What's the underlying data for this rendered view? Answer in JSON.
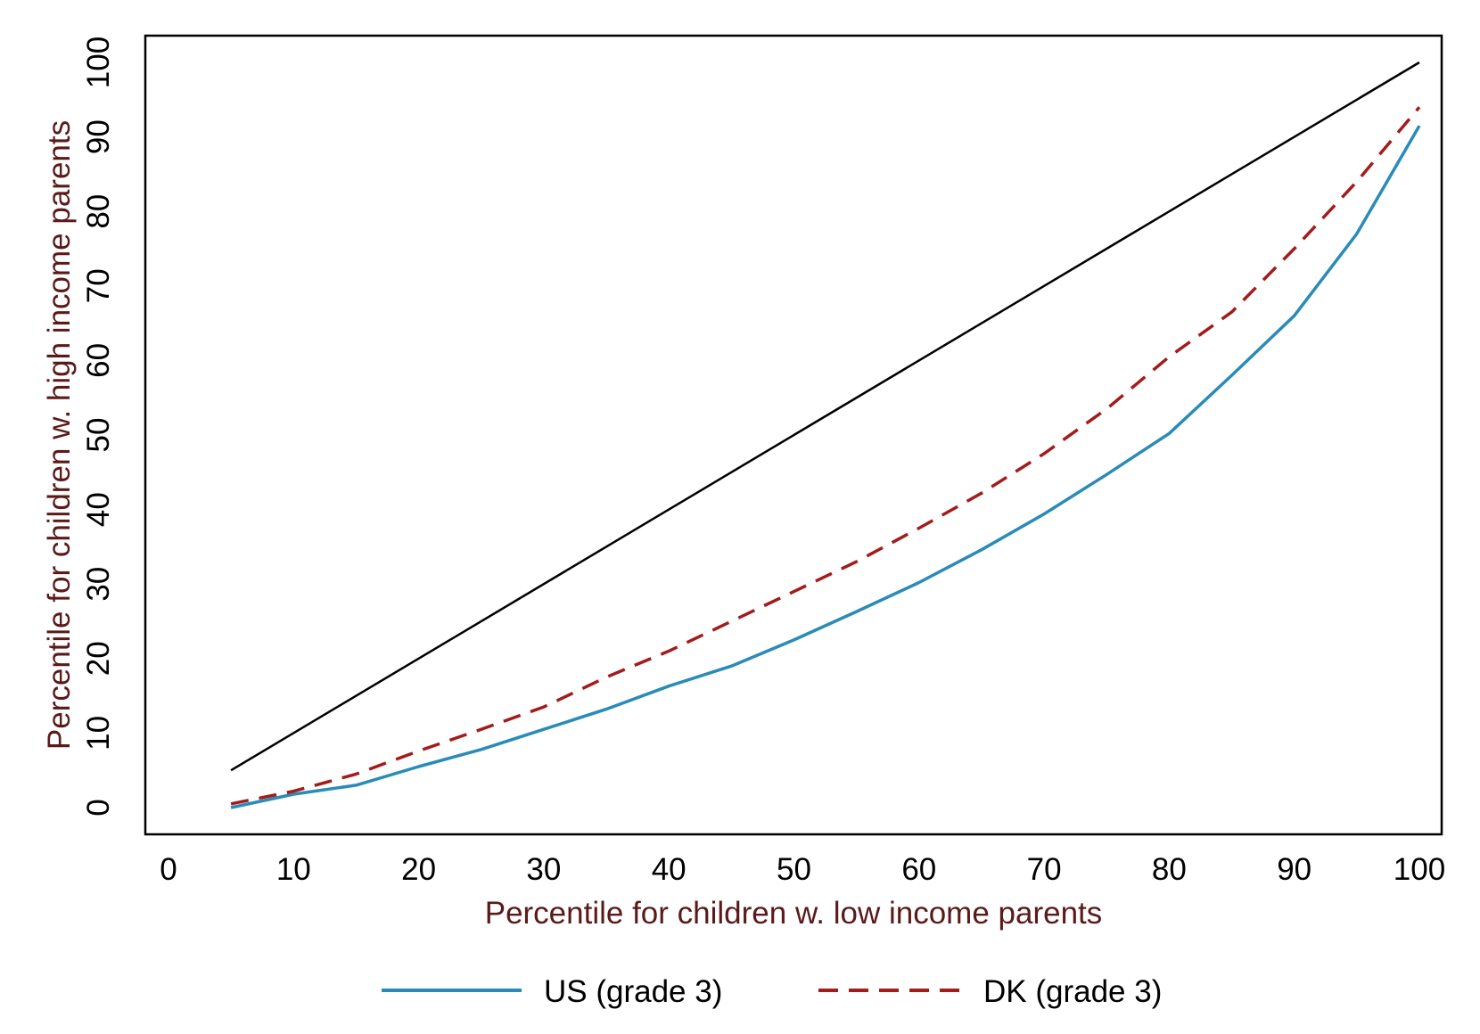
{
  "chart_data": {
    "type": "line",
    "title": "",
    "xlabel": "Percentile for children w. low income parents",
    "ylabel": "Percentile for children w. high income parents",
    "xlim": [
      0,
      100
    ],
    "ylim": [
      0,
      100
    ],
    "xticks": [
      0,
      10,
      20,
      30,
      40,
      50,
      60,
      70,
      80,
      90,
      100
    ],
    "yticks": [
      0,
      10,
      20,
      30,
      40,
      50,
      60,
      70,
      80,
      90,
      100
    ],
    "grid": false,
    "legend_position": "bottom",
    "series": [
      {
        "name": "",
        "color": "#000000",
        "dash": "solid",
        "in_legend": false,
        "x": [
          5,
          100
        ],
        "y": [
          5,
          100
        ]
      },
      {
        "name": "US (grade 3)",
        "color": "#2a8bb8",
        "dash": "solid",
        "in_legend": true,
        "x": [
          5,
          10,
          15,
          20,
          25,
          30,
          35,
          40,
          45,
          50,
          55,
          60,
          65,
          70,
          75,
          80,
          85,
          90,
          95,
          100
        ],
        "y": [
          0,
          1.8,
          3,
          5.5,
          7.8,
          10.5,
          13.2,
          16.3,
          19,
          22.5,
          26.3,
          30.2,
          34.6,
          39.4,
          44.7,
          50.2,
          58,
          66,
          77,
          91.5
        ]
      },
      {
        "name": "DK (grade 3)",
        "color": "#a31c1c",
        "dash": "dashed",
        "in_legend": true,
        "x": [
          5,
          10,
          15,
          20,
          25,
          30,
          35,
          40,
          45,
          50,
          55,
          60,
          65,
          70,
          75,
          80,
          85,
          90,
          95,
          100
        ],
        "y": [
          0.5,
          2.2,
          4.5,
          7.6,
          10.5,
          13.5,
          17.5,
          21,
          25,
          29,
          33,
          37.5,
          42.2,
          47.5,
          53.5,
          60.5,
          66.5,
          75,
          84,
          94
        ]
      }
    ]
  },
  "legend": {
    "items": [
      {
        "label": "US (grade 3)",
        "color": "#2a8bb8",
        "dash": "solid"
      },
      {
        "label": "DK (grade 3)",
        "color": "#a31c1c",
        "dash": "dashed"
      }
    ]
  },
  "colors": {
    "axis_title": "#5a1a1a",
    "frame": "#000000"
  }
}
